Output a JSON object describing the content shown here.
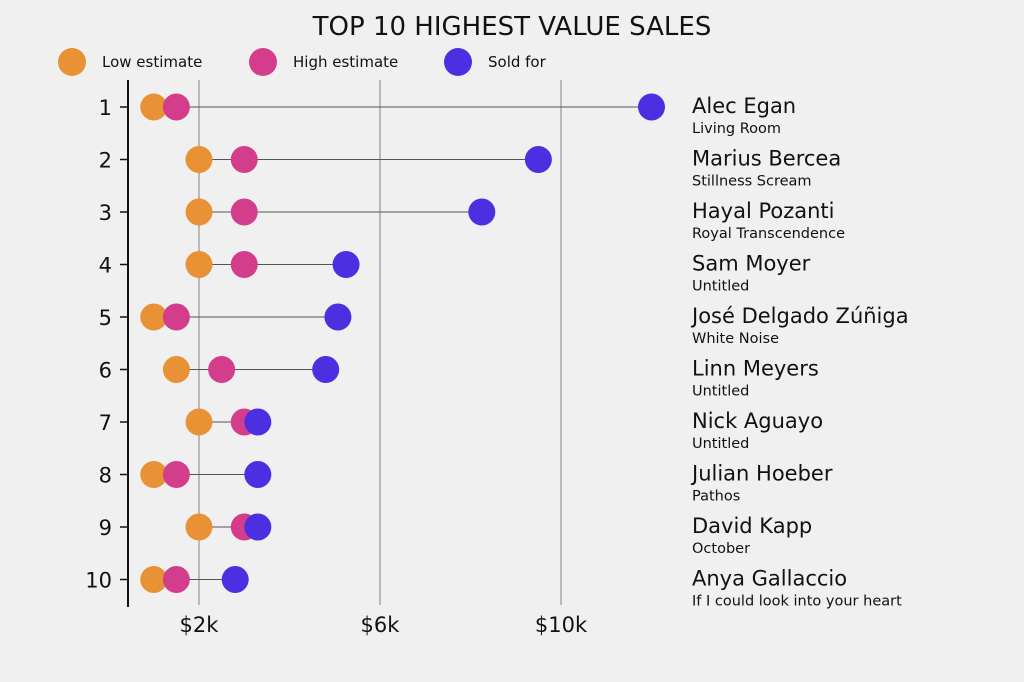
{
  "chart_data": {
    "type": "dot",
    "title": "TOP 10 HIGHEST VALUE SALES",
    "legend": [
      {
        "label": "Low estimate",
        "color": "#e89135"
      },
      {
        "label": "High estimate",
        "color": "#d43d8b"
      },
      {
        "label": "Sold for",
        "color": "#4b2fe0"
      }
    ],
    "legend_position": "top-left",
    "x_ticks": [
      {
        "value": 2,
        "label": "$2k"
      },
      {
        "value": 6,
        "label": "$6k"
      },
      {
        "value": 10,
        "label": "$10k"
      }
    ],
    "xlim": [
      0.45,
      12.6
    ],
    "x_unit": "thousands USD",
    "grid": "vertical",
    "rows": [
      {
        "rank": "1",
        "artist": "Alec Egan",
        "work": "Living Room",
        "low": 1,
        "high": 1.5,
        "sold": 12
      },
      {
        "rank": "2",
        "artist": "Marius Bercea",
        "work": "Stillness Scream",
        "low": 2,
        "high": 3,
        "sold": 9.5
      },
      {
        "rank": "3",
        "artist": "Hayal Pozanti",
        "work": "Royal Transcendence",
        "low": 2,
        "high": 3,
        "sold": 8.25
      },
      {
        "rank": "4",
        "artist": "Sam Moyer",
        "work": "Untitled",
        "low": 2,
        "high": 3,
        "sold": 5.25
      },
      {
        "rank": "5",
        "artist": "José Delgado Zúñiga",
        "work": "White Noise",
        "low": 1,
        "high": 1.5,
        "sold": 5.07
      },
      {
        "rank": "6",
        "artist": "Linn Meyers",
        "work": "Untitled",
        "low": 1.5,
        "high": 2.5,
        "sold": 4.8
      },
      {
        "rank": "7",
        "artist": "Nick Aguayo",
        "work": "Untitled",
        "low": 2,
        "high": 3,
        "sold": 3.3
      },
      {
        "rank": "8",
        "artist": "Julian Hoeber",
        "work": "Pathos",
        "low": 1,
        "high": 1.5,
        "sold": 3.3
      },
      {
        "rank": "9",
        "artist": "David Kapp",
        "work": "October",
        "low": 2,
        "high": 3,
        "sold": 3.3
      },
      {
        "rank": "10",
        "artist": "Anya Gallaccio",
        "work": "If I could look into your heart",
        "low": 1,
        "high": 1.5,
        "sold": 2.8
      }
    ]
  }
}
